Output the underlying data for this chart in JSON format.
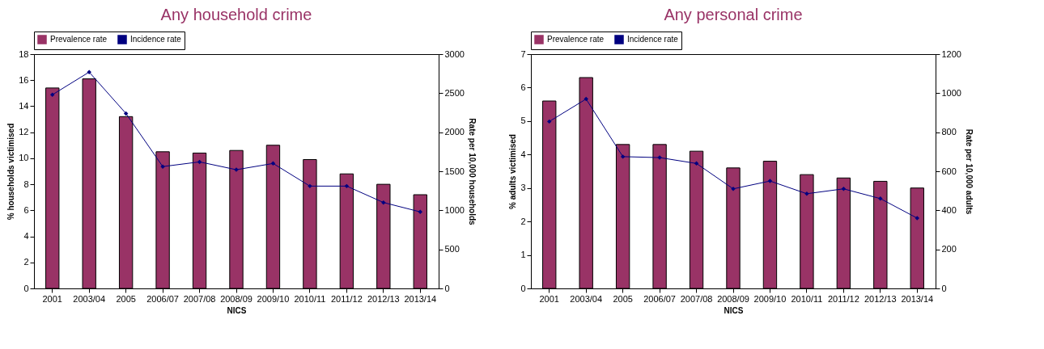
{
  "chart_data": [
    {
      "type": "bar",
      "title": "Any household crime",
      "xlabel": "NICS",
      "ylabel": "% households victimised",
      "y2label": "Rate per 10,000 households",
      "categories": [
        "2001",
        "2003/04",
        "2005",
        "2006/07",
        "2007/08",
        "2008/09",
        "2009/10",
        "2010/11",
        "2011/12",
        "2012/13",
        "2013/14"
      ],
      "series": [
        {
          "name": "Prevalence rate",
          "color": "#993366",
          "values": [
            15.4,
            16.1,
            13.2,
            10.5,
            10.4,
            10.6,
            11.0,
            9.9,
            8.8,
            8.0,
            7.2
          ]
        },
        {
          "name": "Incidence rate",
          "type": "line",
          "axis": "y2",
          "color": "#000080",
          "values": [
            2480,
            2770,
            2240,
            1560,
            1620,
            1520,
            1600,
            1310,
            1310,
            1100,
            980
          ]
        }
      ],
      "ylim": [
        0,
        18
      ],
      "yticks": [
        0,
        2,
        4,
        6,
        8,
        10,
        12,
        14,
        16,
        18
      ],
      "y2lim": [
        0,
        3000
      ],
      "y2ticks": [
        0,
        500,
        1000,
        1500,
        2000,
        2500,
        3000
      ],
      "legend": "top",
      "marker": "diamond"
    },
    {
      "type": "bar",
      "title": "Any personal crime",
      "xlabel": "NICS",
      "ylabel": "% adults victimised",
      "y2label": "Rate per 10,000 adults",
      "categories": [
        "2001",
        "2003/04",
        "2005",
        "2006/07",
        "2007/08",
        "2008/09",
        "2009/10",
        "2010/11",
        "2011/12",
        "2012/13",
        "2013/14"
      ],
      "series": [
        {
          "name": "Prevalence rate",
          "color": "#993366",
          "values": [
            5.6,
            6.3,
            4.3,
            4.3,
            4.1,
            3.6,
            3.8,
            3.4,
            3.3,
            3.2,
            3.0
          ]
        },
        {
          "name": "Incidence rate",
          "type": "line",
          "axis": "y2",
          "color": "#000080",
          "values": [
            855,
            970,
            675,
            670,
            640,
            510,
            550,
            485,
            510,
            460,
            360
          ]
        }
      ],
      "ylim": [
        0,
        7
      ],
      "yticks": [
        0,
        1,
        2,
        3,
        4,
        5,
        6,
        7
      ],
      "y2lim": [
        0,
        1200
      ],
      "y2ticks": [
        0,
        200,
        400,
        600,
        800,
        1000,
        1200
      ],
      "legend": "top",
      "marker": "diamond"
    }
  ]
}
